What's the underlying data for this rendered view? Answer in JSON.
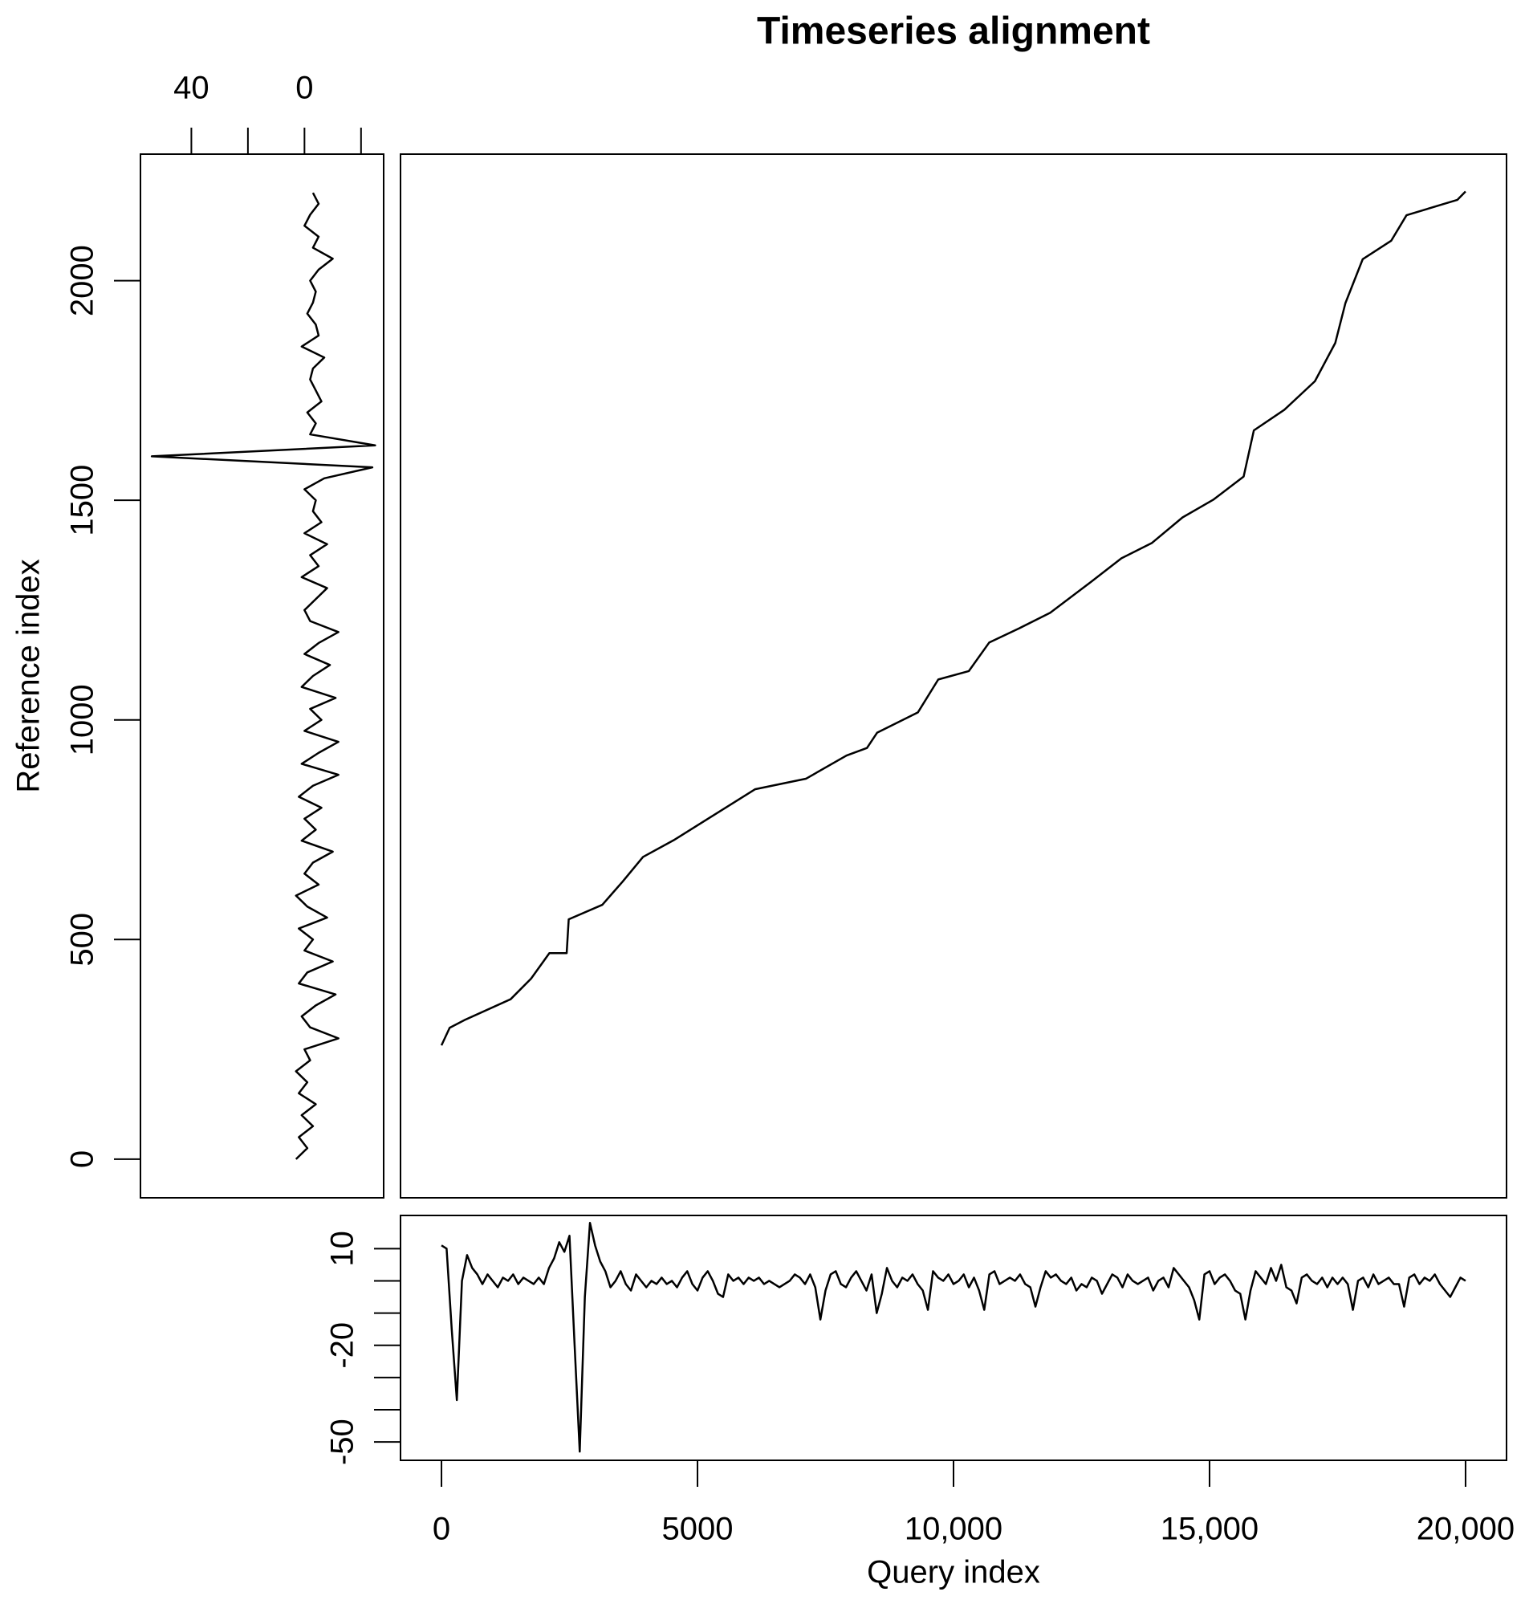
{
  "chart_data": [
    {
      "type": "line",
      "title": "Timeseries alignment",
      "x": [
        0,
        160,
        457,
        1350,
        1750,
        2107,
        2445,
        2485,
        3141,
        3539,
        3936,
        4533,
        5328,
        6123,
        7117,
        7912,
        8310,
        8509,
        9304,
        9702,
        10298,
        10696,
        11292,
        11889,
        12684,
        13280,
        13877,
        14473,
        15070,
        15666,
        15865,
        16461,
        17058,
        17455,
        17654,
        17992,
        18549,
        18847,
        19841,
        20000
      ],
      "values": [
        259,
        299,
        317,
        364,
        411,
        469,
        469,
        546,
        579,
        632,
        688,
        726,
        784,
        842,
        866,
        919,
        936,
        971,
        1017,
        1092,
        1111,
        1176,
        1209,
        1244,
        1314,
        1368,
        1403,
        1461,
        1501,
        1554,
        1659,
        1706,
        1771,
        1858,
        1949,
        2049,
        2091,
        2149,
        2184,
        2203
      ],
      "xlim": [
        -800,
        20800
      ],
      "ylim": [
        -88,
        2288
      ],
      "color": "#000000"
    },
    {
      "type": "line",
      "orientation": "vertical",
      "y_label": "Reference index",
      "x_axis_side": "top",
      "x": [
        0,
        25,
        50,
        75,
        100,
        125,
        150,
        175,
        200,
        225,
        250,
        275,
        300,
        325,
        350,
        375,
        400,
        425,
        450,
        475,
        500,
        525,
        550,
        575,
        600,
        625,
        650,
        675,
        700,
        725,
        750,
        775,
        800,
        825,
        850,
        875,
        900,
        925,
        950,
        975,
        1000,
        1025,
        1050,
        1075,
        1100,
        1125,
        1150,
        1175,
        1200,
        1225,
        1250,
        1275,
        1300,
        1325,
        1350,
        1375,
        1400,
        1425,
        1450,
        1475,
        1500,
        1525,
        1550,
        1575,
        1600,
        1625,
        1650,
        1675,
        1700,
        1725,
        1750,
        1775,
        1800,
        1825,
        1850,
        1875,
        1900,
        1925,
        1950,
        1975,
        2000,
        2025,
        2050,
        2075,
        2100,
        2125,
        2150,
        2175,
        2200
      ],
      "values": [
        3,
        -1,
        2,
        -3,
        1,
        -4,
        2,
        -1,
        3,
        -2,
        0,
        -12,
        -2,
        1,
        -4,
        -11,
        2,
        -1,
        -10,
        0,
        -3,
        2,
        -8,
        -1,
        3,
        -5,
        0,
        -3,
        -10,
        1,
        -4,
        0,
        -6,
        2,
        -3,
        -12,
        1,
        -5,
        -12,
        0,
        -6,
        -2,
        -11,
        1,
        -3,
        -9,
        0,
        -5,
        -12,
        -2,
        0,
        -4,
        -8,
        1,
        -5,
        -2,
        -8,
        0,
        -6,
        -3,
        -4,
        0,
        -7,
        -24,
        54,
        -25,
        -2,
        -4,
        -1,
        -6,
        -4,
        -2,
        -3,
        -7,
        1,
        -5,
        -4,
        -1,
        -3,
        -4,
        -2,
        -5,
        -10,
        -3,
        -5,
        0,
        -2,
        -5,
        -3
      ],
      "xlim": [
        58,
        -28
      ],
      "xticks": [
        40,
        {
          "value": 20,
          "label": null
        },
        0,
        {
          "value": -20,
          "label": null
        }
      ],
      "ylim": [
        -88,
        2288
      ],
      "yticks": [
        0,
        500,
        1000,
        1500,
        2000
      ],
      "color": "#000000"
    },
    {
      "type": "line",
      "x_label": "Query index",
      "x": [
        0,
        100,
        200,
        300,
        400,
        500,
        600,
        700,
        800,
        900,
        1000,
        1100,
        1200,
        1300,
        1400,
        1500,
        1600,
        1700,
        1800,
        1900,
        2000,
        2100,
        2200,
        2300,
        2400,
        2500,
        2600,
        2700,
        2800,
        2900,
        3000,
        3100,
        3200,
        3300,
        3400,
        3500,
        3600,
        3700,
        3800,
        3900,
        4000,
        4100,
        4200,
        4300,
        4400,
        4500,
        4600,
        4700,
        4800,
        4900,
        5000,
        5100,
        5200,
        5300,
        5400,
        5500,
        5600,
        5700,
        5800,
        5900,
        6000,
        6100,
        6200,
        6300,
        6400,
        6500,
        6600,
        6700,
        6800,
        6900,
        7000,
        7100,
        7200,
        7300,
        7400,
        7500,
        7600,
        7700,
        7800,
        7900,
        8000,
        8100,
        8200,
        8300,
        8400,
        8500,
        8600,
        8700,
        8800,
        8900,
        9000,
        9100,
        9200,
        9300,
        9400,
        9500,
        9600,
        9700,
        9800,
        9900,
        10000,
        10100,
        10200,
        10300,
        10400,
        10500,
        10600,
        10700,
        10800,
        10900,
        11000,
        11100,
        11200,
        11300,
        11400,
        11500,
        11600,
        11700,
        11800,
        11900,
        12000,
        12100,
        12200,
        12300,
        12400,
        12500,
        12600,
        12700,
        12800,
        12900,
        13000,
        13100,
        13200,
        13300,
        13400,
        13500,
        13600,
        13700,
        13800,
        13900,
        14000,
        14100,
        14200,
        14300,
        14400,
        14500,
        14600,
        14700,
        14800,
        14900,
        15000,
        15100,
        15200,
        15300,
        15400,
        15500,
        15600,
        15700,
        15800,
        15900,
        16000,
        16100,
        16200,
        16300,
        16400,
        16500,
        16600,
        16700,
        16800,
        16900,
        17000,
        17100,
        17200,
        17300,
        17400,
        17500,
        17600,
        17700,
        17800,
        17900,
        18000,
        18100,
        18200,
        18300,
        18400,
        18500,
        18600,
        18700,
        18800,
        18900,
        19000,
        19100,
        19200,
        19300,
        19400,
        19500,
        19600,
        19700,
        19800,
        19900,
        20000
      ],
      "values": [
        11,
        10,
        -15,
        -37,
        0,
        8,
        4,
        2,
        -1,
        2,
        0,
        -2,
        1,
        0,
        2,
        -1,
        1,
        0,
        -1,
        1,
        -1,
        4,
        7,
        12,
        9,
        14,
        -20,
        -53,
        -5,
        18,
        11,
        6,
        3,
        -2,
        0,
        3,
        -1,
        -3,
        2,
        0,
        -2,
        0,
        -1,
        1,
        -1,
        0,
        -2,
        1,
        3,
        -1,
        -3,
        1,
        3,
        0,
        -4,
        -5,
        2,
        0,
        1,
        -1,
        1,
        0,
        1,
        -1,
        0,
        -1,
        -2,
        -1,
        0,
        2,
        1,
        -1,
        2,
        -2,
        -12,
        -3,
        2,
        3,
        -1,
        -2,
        1,
        3,
        0,
        -3,
        2,
        -10,
        -4,
        4,
        0,
        -2,
        1,
        0,
        2,
        -1,
        -3,
        -9,
        3,
        1,
        0,
        2,
        -1,
        0,
        2,
        -2,
        1,
        -3,
        -9,
        2,
        3,
        -1,
        0,
        1,
        0,
        2,
        -1,
        -2,
        -8,
        -2,
        3,
        1,
        2,
        0,
        -1,
        1,
        -3,
        -1,
        -2,
        1,
        0,
        -4,
        -1,
        2,
        1,
        -2,
        2,
        0,
        -1,
        0,
        1,
        -3,
        0,
        1,
        -2,
        4,
        2,
        0,
        -2,
        -6,
        -12,
        2,
        3,
        -1,
        1,
        2,
        0,
        -3,
        -4,
        -12,
        -3,
        3,
        1,
        -1,
        4,
        0,
        5,
        -2,
        -3,
        -7,
        1,
        2,
        0,
        -1,
        1,
        -2,
        1,
        -1,
        1,
        -1,
        -9,
        0,
        1,
        -2,
        2,
        -1,
        0,
        1,
        -1,
        -1,
        -8,
        1,
        2,
        -1,
        1,
        0,
        2,
        -1,
        -3,
        -5,
        -2,
        1,
        0
      ],
      "xlim": [
        -800,
        20800
      ],
      "xticks": [
        0,
        5000,
        {
          "value": 10000,
          "label": "10,000"
        },
        {
          "value": 15000,
          "label": "15,000"
        },
        {
          "value": 20000,
          "label": "20,000"
        }
      ],
      "ylim": [
        -55.7,
        20.3
      ],
      "yticks": [
        10,
        {
          "value": 0,
          "label": null
        },
        {
          "value": -10,
          "label": null
        },
        -20,
        {
          "value": -30,
          "label": null
        },
        {
          "value": -40,
          "label": null
        },
        -50
      ],
      "color": "#000000"
    }
  ]
}
